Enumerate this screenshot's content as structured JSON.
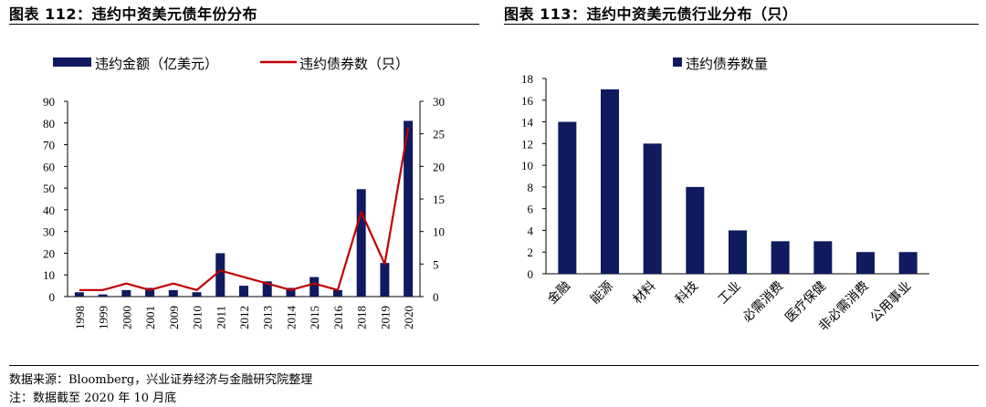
{
  "left_title": "图表 112：违约中资美元债年份分布",
  "right_title": "图表 113：违约中资美元债行业分布（只）",
  "source_note": "数据来源：Bloomberg，兴业证券经济与金融研究院整理",
  "footnote": "注：数据截至 2020 年 10 月底",
  "colors": {
    "bar": "#0f1b5e",
    "line": "#c00000"
  },
  "chart_data": [
    {
      "type": "bar",
      "categories": [
        "1998",
        "1999",
        "2000",
        "2001",
        "2009",
        "2010",
        "2011",
        "2012",
        "2013",
        "2014",
        "2015",
        "2016",
        "2018",
        "2019",
        "2020"
      ],
      "series": [
        {
          "name": "违约金额（亿美元）",
          "type": "bar",
          "axis": "left",
          "values": [
            2,
            1,
            3,
            4,
            3,
            2,
            20,
            5,
            7,
            4,
            9,
            3,
            49.5,
            15.5,
            81
          ]
        },
        {
          "name": "违约债券数（只）",
          "type": "line",
          "axis": "right",
          "values": [
            1,
            1,
            2,
            1,
            2,
            1,
            4,
            3,
            2,
            1,
            2,
            1,
            13,
            5,
            26
          ]
        }
      ],
      "ylim_left": [
        0,
        90
      ],
      "yticks_left": [
        0,
        10,
        20,
        30,
        40,
        50,
        60,
        70,
        80,
        90
      ],
      "ylim_right": [
        0,
        30
      ],
      "yticks_right": [
        0,
        5,
        10,
        15,
        20,
        25,
        30
      ],
      "legend": "top",
      "grid": false
    },
    {
      "type": "bar",
      "categories": [
        "金融",
        "能源",
        "材料",
        "科技",
        "工业",
        "必需消费",
        "医疗保健",
        "非必需消费",
        "公用事业"
      ],
      "series": [
        {
          "name": "违约债券数量",
          "values": [
            14,
            17,
            12,
            8,
            4,
            3,
            3,
            2,
            2
          ]
        }
      ],
      "ylim": [
        0,
        18
      ],
      "yticks": [
        0,
        2,
        4,
        6,
        8,
        10,
        12,
        14,
        16,
        18
      ],
      "legend": "top",
      "grid": false
    }
  ]
}
